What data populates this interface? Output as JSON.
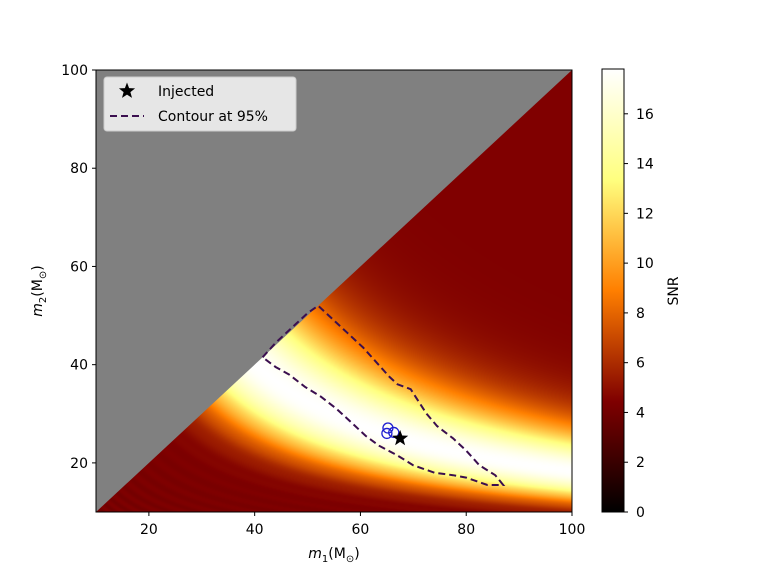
{
  "chart_data": {
    "type": "heatmap",
    "title": "",
    "xlabel_main": "m",
    "xlabel_sub": "1",
    "xlabel_unit_open": "(M",
    "xlabel_unit_sub": "⊙",
    "xlabel_unit_close": ")",
    "ylabel_main": "m",
    "ylabel_sub": "2",
    "ylabel_unit_open": "(M",
    "ylabel_unit_sub": "⊙",
    "ylabel_unit_close": ")",
    "xlim": [
      10,
      100
    ],
    "ylim": [
      10,
      100
    ],
    "x_ticks": [
      20,
      40,
      60,
      80,
      100
    ],
    "y_ticks": [
      20,
      40,
      60,
      80,
      100
    ],
    "x_tick_labels": [
      "20",
      "40",
      "60",
      "80",
      "100"
    ],
    "y_tick_labels": [
      "20",
      "40",
      "60",
      "80",
      "100"
    ],
    "masked_region": "m2 > m1 (grey)",
    "colorbar": {
      "label": "SNR",
      "colormap": "afmhot",
      "range": [
        0,
        17.8
      ],
      "ticks": [
        0,
        2,
        4,
        6,
        8,
        10,
        12,
        14,
        16
      ],
      "tick_labels": [
        "0",
        "2",
        "4",
        "6",
        "8",
        "10",
        "12",
        "14",
        "16"
      ]
    },
    "injected": {
      "m1": 67.5,
      "m2": 25.0
    },
    "recovered_points": [
      {
        "m1": 65.2,
        "m2": 27.1
      },
      {
        "m1": 65.0,
        "m2": 26.0
      },
      {
        "m1": 66.3,
        "m2": 26.2
      }
    ],
    "contour_95": [
      [
        41.5,
        41.5
      ],
      [
        44.0,
        44.5
      ],
      [
        47.0,
        47.5
      ],
      [
        50.0,
        50.5
      ],
      [
        52.0,
        52.0
      ],
      [
        54.5,
        49.5
      ],
      [
        57.5,
        46.5
      ],
      [
        60.5,
        43.5
      ],
      [
        63.0,
        40.5
      ],
      [
        65.5,
        37.5
      ],
      [
        67.0,
        36.0
      ],
      [
        69.5,
        35.0
      ],
      [
        71.0,
        32.5
      ],
      [
        72.5,
        30.0
      ],
      [
        74.5,
        27.5
      ],
      [
        77.5,
        25.0
      ],
      [
        80.0,
        22.5
      ],
      [
        82.5,
        19.5
      ],
      [
        85.5,
        17.5
      ],
      [
        87.0,
        15.5
      ],
      [
        84.0,
        15.5
      ],
      [
        80.0,
        17.0
      ],
      [
        77.5,
        17.5
      ],
      [
        74.0,
        18.0
      ],
      [
        70.0,
        19.5
      ],
      [
        67.0,
        21.5
      ],
      [
        63.5,
        23.5
      ],
      [
        61.0,
        25.5
      ],
      [
        58.0,
        28.5
      ],
      [
        55.5,
        31.0
      ],
      [
        52.5,
        33.5
      ],
      [
        49.5,
        35.5
      ],
      [
        46.5,
        38.0
      ],
      [
        44.0,
        39.5
      ],
      [
        41.5,
        41.5
      ]
    ],
    "legend": {
      "position": "upper-left",
      "entries": [
        {
          "label": "Injected",
          "marker": "star",
          "color": "#000000"
        },
        {
          "label": "Contour at 95%",
          "marker": "dashed-line",
          "color": "#3b0f4f"
        }
      ]
    },
    "colors": {
      "mask": "#808080",
      "contour": "#3b0f4f",
      "recovered": "#1f1fd0",
      "injected": "#000000"
    }
  }
}
